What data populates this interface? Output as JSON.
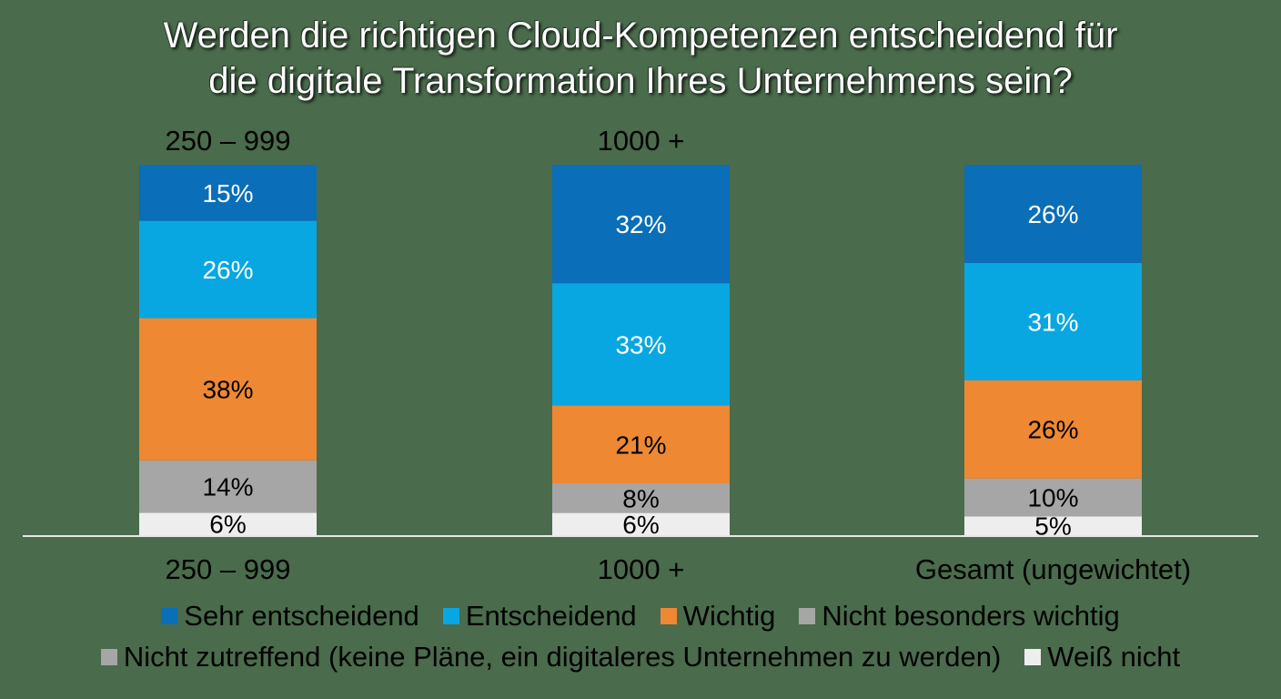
{
  "chart_data": {
    "type": "bar",
    "stacked": true,
    "title_lines": [
      "Werden die richtigen Cloud-Kompetenzen entscheidend für",
      "die digitale Transformation Ihres Unternehmens sein?"
    ],
    "categories": [
      "250 – 999",
      "1000 +",
      "Gesamt (ungewichtet)"
    ],
    "top_labels": [
      "250 – 999",
      "1000 +",
      ""
    ],
    "unit": "%",
    "ylim": [
      0,
      100
    ],
    "grid": false,
    "legend_position": "bottom",
    "series": [
      {
        "name": "Sehr entscheidend",
        "color": "#0a6eb8",
        "values": [
          15,
          32,
          26
        ]
      },
      {
        "name": "Entscheidend",
        "color": "#08a7e2",
        "values": [
          26,
          33,
          31
        ]
      },
      {
        "name": "Wichtig",
        "color": "#ee8832",
        "values": [
          38,
          21,
          26
        ]
      },
      {
        "name": "Nicht besonders wichtig",
        "color": "#a6a6a6",
        "values": [
          14,
          8,
          10
        ]
      },
      {
        "name": "Nicht zutreffend (keine Pläne, ein digitaleres Unternehmen zu werden)",
        "color": "#a6a6a6",
        "values": [
          0,
          0,
          0
        ]
      },
      {
        "name": "Weiß nicht",
        "color": "#eeeeee",
        "values": [
          6,
          6,
          5
        ]
      }
    ],
    "label_colors": [
      "#ffffff",
      "#ffffff",
      "#000000",
      "#000000",
      "#000000",
      "#000000"
    ]
  }
}
